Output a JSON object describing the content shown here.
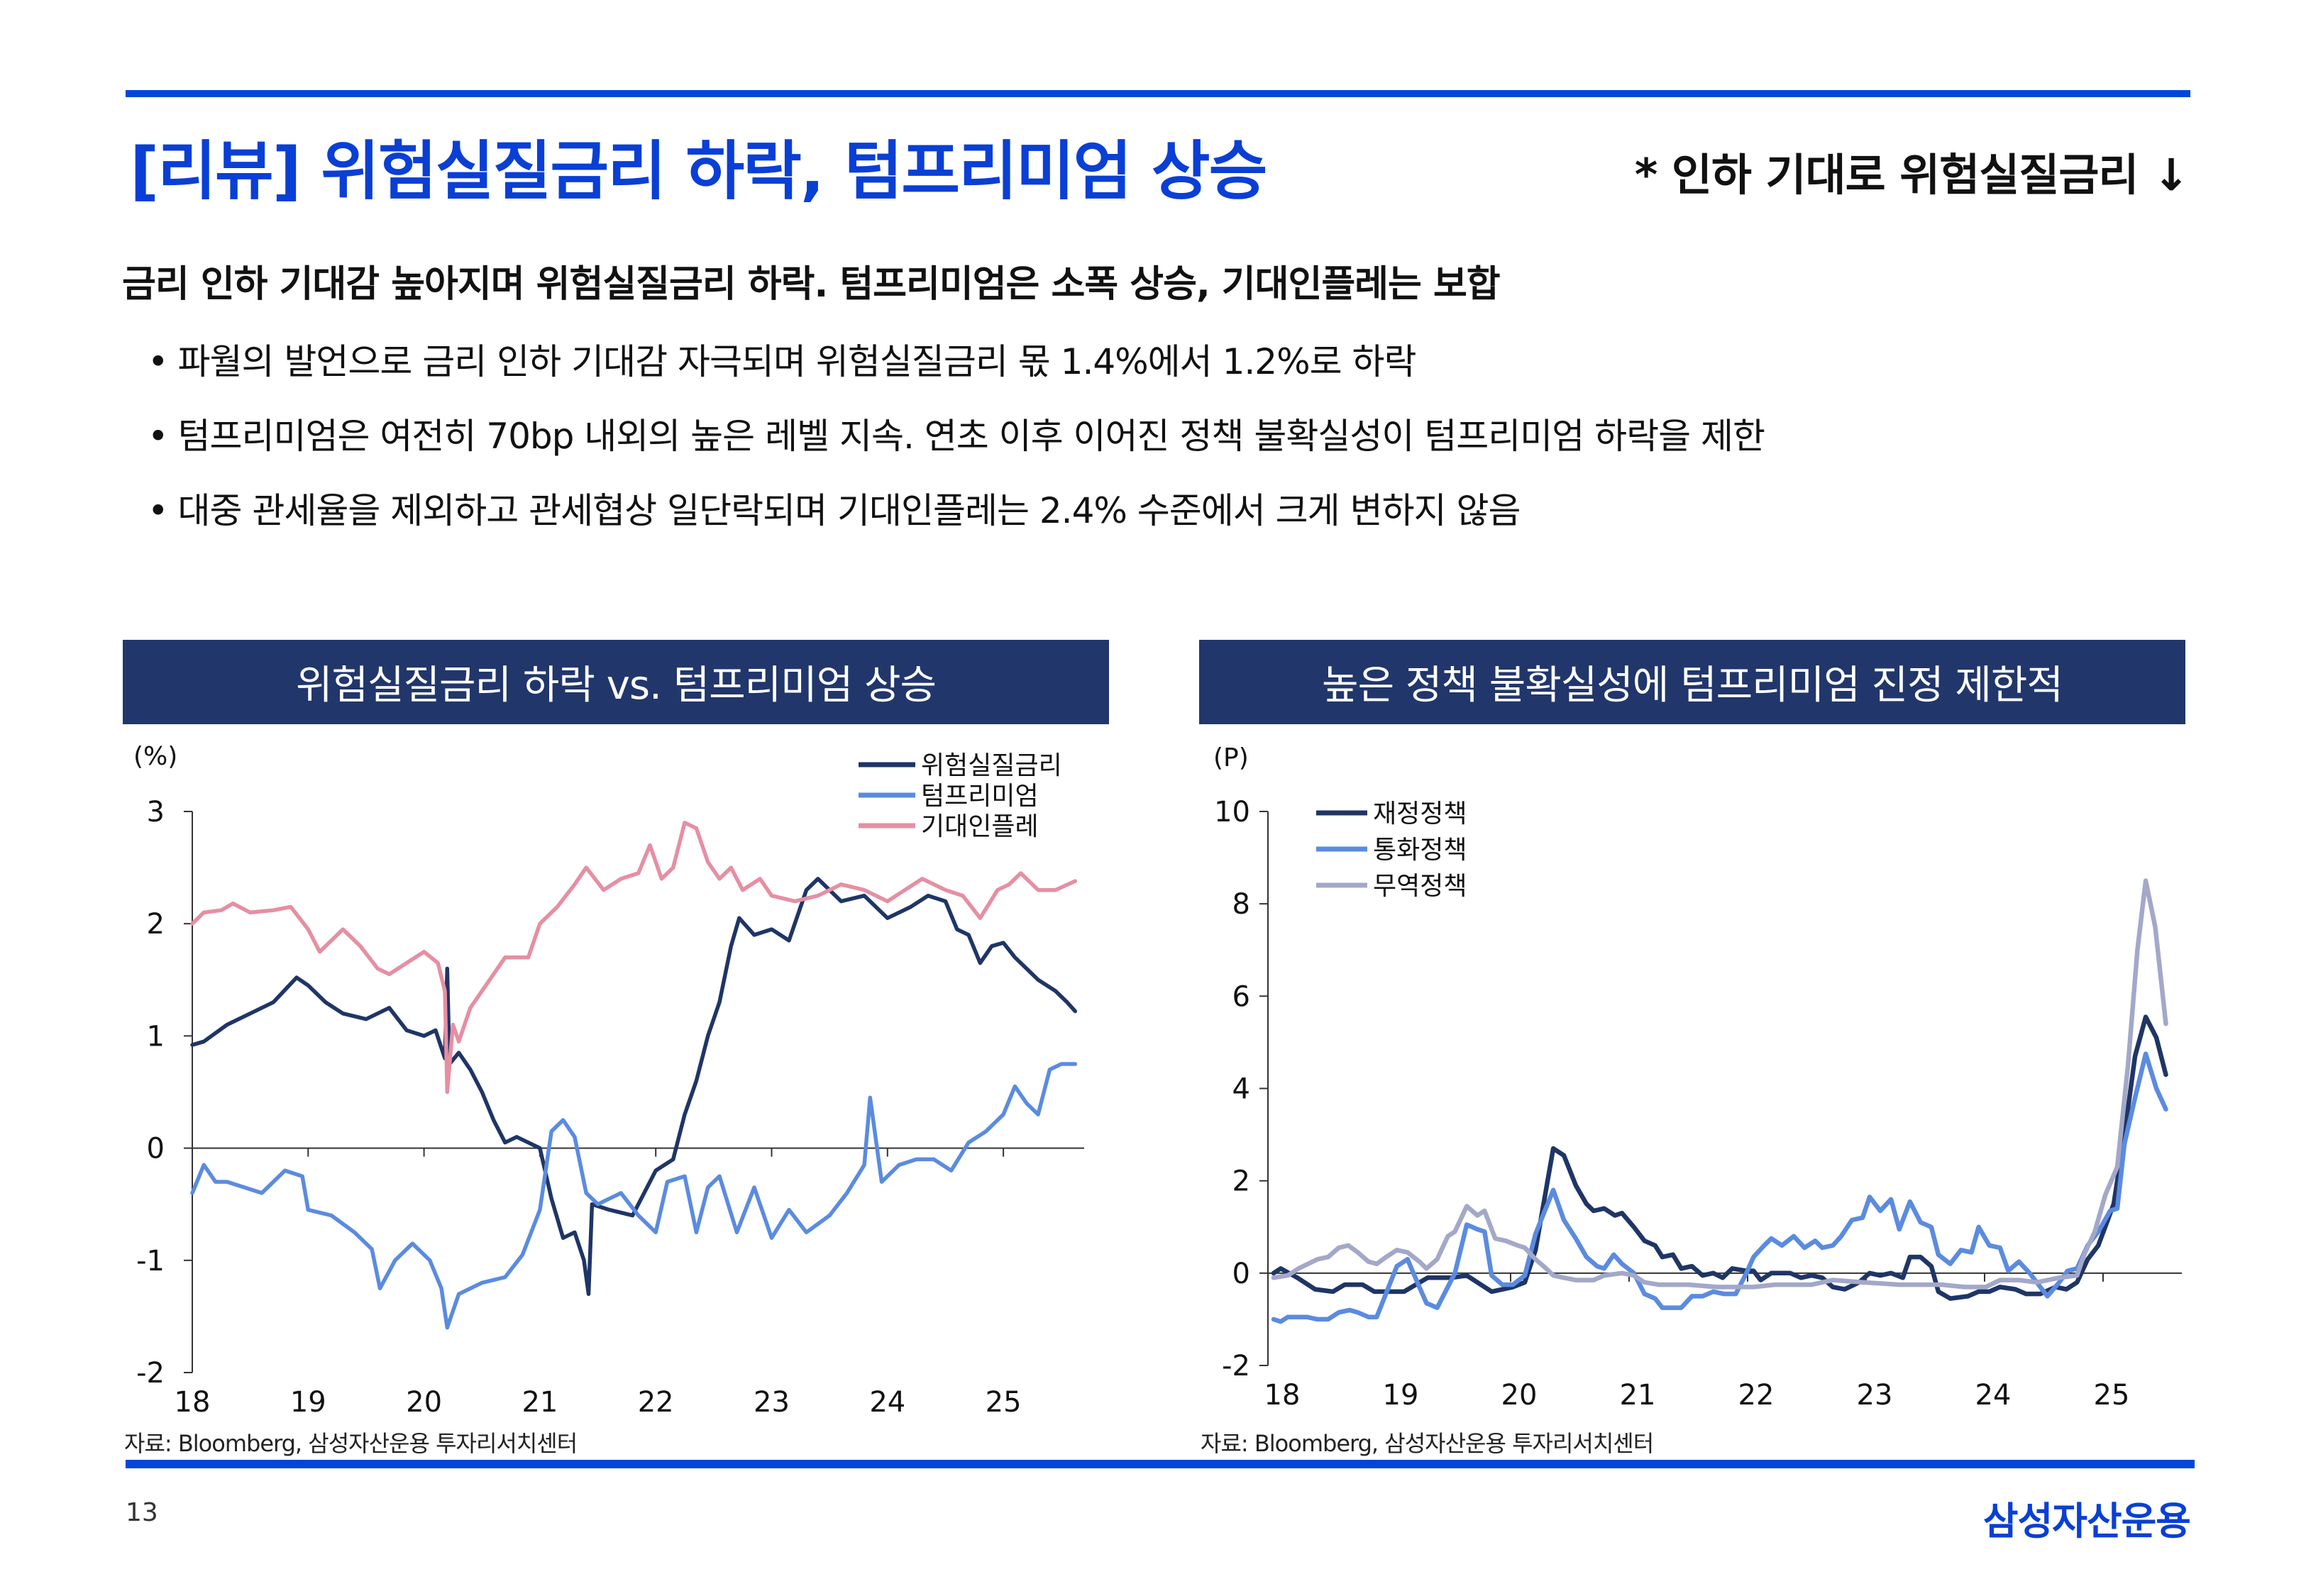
{
  "header": {
    "title": "[리뷰] 위험실질금리 하락, 텀프리미엄 상승",
    "note": "* 인하 기대로 위험실질금리 ↓"
  },
  "summary": {
    "headline": "금리 인하 기대감 높아지며 위험실질금리 하락. 텀프리미엄은 소폭 상승, 기대인플레는 보합",
    "bullet_symbol": "•",
    "bullets": [
      "파월의 발언으로 금리 인하 기대감 자극되며 위험실질금리 몫 1.4%에서 1.2%로 하락",
      "텀프리미엄은 여전히 70bp 내외의 높은 레벨 지속. 연초 이후 이어진 정책 불확실성이 텀프리미엄 하락을 제한",
      "대중 관세율을 제외하고 관세협상 일단락되며 기대인플레는 2.4% 수준에서 크게 변하지 않음"
    ]
  },
  "footer": {
    "page_number": "13",
    "logo_text": "삼성자산운용"
  },
  "colors": {
    "accent": "#0a3fd6",
    "panel_header": "#21366b",
    "navy": "#1f3566",
    "blue": "#5b8be0",
    "pink": "#e58fa3",
    "gray": "#a3a8c9"
  },
  "chart_data": [
    {
      "type": "line",
      "title": "위험실질금리 하락 vs. 텀프리미엄 상승",
      "ylabel": "(%)",
      "xlabel": "",
      "source": "자료: Bloomberg, 삼성자산운용 투자리서치센터",
      "ylim": [
        -2,
        3
      ],
      "xlim": [
        18,
        25.62
      ],
      "yticks": [
        "-2",
        "-1",
        "0",
        "1",
        "2",
        "3"
      ],
      "ytick_values": [
        -2,
        -1,
        0,
        1,
        2,
        3
      ],
      "xticks": [
        "18",
        "19",
        "20",
        "21",
        "22",
        "23",
        "24",
        "25"
      ],
      "xtick_values": [
        18,
        19,
        20,
        21,
        22,
        23,
        24,
        25
      ],
      "legend_position": "top-right",
      "series": [
        {
          "name": "위험실질금리",
          "color": "#1f3566",
          "x": [
            18.0,
            18.1,
            18.3,
            18.5,
            18.7,
            18.9,
            19.0,
            19.15,
            19.3,
            19.5,
            19.7,
            19.85,
            20.0,
            20.1,
            20.18,
            20.2,
            20.22,
            20.3,
            20.4,
            20.5,
            20.6,
            20.7,
            20.8,
            21.0,
            21.1,
            21.2,
            21.3,
            21.38,
            21.42,
            21.45,
            21.6,
            21.8,
            22.0,
            22.15,
            22.25,
            22.35,
            22.45,
            22.55,
            22.65,
            22.72,
            22.85,
            23.0,
            23.15,
            23.3,
            23.4,
            23.6,
            23.8,
            24.0,
            24.2,
            24.35,
            24.5,
            24.6,
            24.7,
            24.8,
            24.9,
            25.0,
            25.1,
            25.2,
            25.3,
            25.45,
            25.55,
            25.62
          ],
          "y": [
            0.92,
            0.95,
            1.1,
            1.2,
            1.3,
            1.52,
            1.45,
            1.3,
            1.2,
            1.15,
            1.25,
            1.05,
            1.0,
            1.05,
            0.8,
            1.6,
            0.75,
            0.85,
            0.7,
            0.5,
            0.25,
            0.05,
            0.1,
            0.0,
            -0.45,
            -0.8,
            -0.75,
            -1.0,
            -1.3,
            -0.5,
            -0.55,
            -0.6,
            -0.2,
            -0.1,
            0.3,
            0.6,
            1.0,
            1.3,
            1.8,
            2.05,
            1.9,
            1.95,
            1.85,
            2.3,
            2.4,
            2.2,
            2.25,
            2.05,
            2.15,
            2.25,
            2.2,
            1.95,
            1.9,
            1.65,
            1.8,
            1.83,
            1.7,
            1.6,
            1.5,
            1.4,
            1.3,
            1.22
          ]
        },
        {
          "name": "텀프리미엄",
          "color": "#5b8be0",
          "x": [
            18.0,
            18.1,
            18.2,
            18.3,
            18.45,
            18.6,
            18.8,
            18.95,
            19.0,
            19.2,
            19.4,
            19.55,
            19.62,
            19.75,
            19.9,
            20.05,
            20.15,
            20.2,
            20.3,
            20.5,
            20.7,
            20.85,
            21.0,
            21.1,
            21.2,
            21.3,
            21.4,
            21.5,
            21.7,
            21.85,
            22.0,
            22.1,
            22.25,
            22.35,
            22.45,
            22.55,
            22.7,
            22.85,
            23.0,
            23.15,
            23.3,
            23.5,
            23.65,
            23.8,
            23.85,
            23.95,
            24.1,
            24.25,
            24.4,
            24.55,
            24.7,
            24.85,
            25.0,
            25.1,
            25.2,
            25.3,
            25.4,
            25.5,
            25.62
          ],
          "y": [
            -0.4,
            -0.15,
            -0.3,
            -0.3,
            -0.35,
            -0.4,
            -0.2,
            -0.25,
            -0.55,
            -0.6,
            -0.75,
            -0.9,
            -1.25,
            -1.0,
            -0.85,
            -1.0,
            -1.25,
            -1.6,
            -1.3,
            -1.2,
            -1.15,
            -0.95,
            -0.55,
            0.15,
            0.25,
            0.1,
            -0.4,
            -0.5,
            -0.4,
            -0.6,
            -0.75,
            -0.3,
            -0.25,
            -0.75,
            -0.35,
            -0.25,
            -0.75,
            -0.35,
            -0.8,
            -0.55,
            -0.75,
            -0.6,
            -0.4,
            -0.15,
            0.45,
            -0.3,
            -0.15,
            -0.1,
            -0.1,
            -0.2,
            0.05,
            0.15,
            0.3,
            0.55,
            0.4,
            0.3,
            0.7,
            0.75,
            0.75
          ]
        },
        {
          "name": "기대인플레",
          "color": "#e58fa3",
          "x": [
            18.0,
            18.1,
            18.25,
            18.35,
            18.5,
            18.7,
            18.85,
            19.0,
            19.1,
            19.3,
            19.45,
            19.6,
            19.7,
            19.85,
            20.0,
            20.12,
            20.18,
            20.2,
            20.25,
            20.3,
            20.4,
            20.5,
            20.7,
            20.9,
            21.0,
            21.15,
            21.3,
            21.4,
            21.55,
            21.7,
            21.85,
            21.95,
            22.05,
            22.15,
            22.25,
            22.35,
            22.45,
            22.55,
            22.65,
            22.75,
            22.9,
            23.0,
            23.2,
            23.4,
            23.6,
            23.8,
            24.0,
            24.15,
            24.3,
            24.5,
            24.65,
            24.8,
            24.95,
            25.05,
            25.15,
            25.3,
            25.45,
            25.62
          ],
          "y": [
            2.0,
            2.1,
            2.12,
            2.18,
            2.1,
            2.12,
            2.15,
            1.95,
            1.75,
            1.95,
            1.8,
            1.6,
            1.55,
            1.65,
            1.75,
            1.65,
            1.4,
            0.5,
            1.1,
            0.95,
            1.25,
            1.4,
            1.7,
            1.7,
            2.0,
            2.15,
            2.35,
            2.5,
            2.3,
            2.4,
            2.45,
            2.7,
            2.4,
            2.5,
            2.9,
            2.85,
            2.55,
            2.4,
            2.5,
            2.3,
            2.4,
            2.25,
            2.2,
            2.25,
            2.35,
            2.3,
            2.2,
            2.3,
            2.4,
            2.3,
            2.25,
            2.05,
            2.3,
            2.35,
            2.45,
            2.3,
            2.3,
            2.38
          ]
        }
      ]
    },
    {
      "type": "line",
      "title": "높은 정책 불확실성에 텀프리미엄 진정 제한적",
      "ylabel": "(P)",
      "xlabel": "",
      "source": "자료: Bloomberg, 삼성자산운용 투자리서치센터",
      "ylim": [
        -2,
        10
      ],
      "xlim": [
        18,
        25.53
      ],
      "yticks": [
        "-2",
        "0",
        "2",
        "4",
        "6",
        "8",
        "10"
      ],
      "ytick_values": [
        -2,
        0,
        2,
        4,
        6,
        8,
        10
      ],
      "xticks": [
        "18",
        "19",
        "20",
        "21",
        "22",
        "23",
        "24",
        "25"
      ],
      "xtick_values": [
        18,
        19,
        20,
        21,
        22,
        23,
        24,
        25
      ],
      "legend_position": "top-left",
      "series": [
        {
          "name": "재정정책",
          "color": "#1f3566",
          "x": [
            18.0,
            18.06,
            18.2,
            18.35,
            18.5,
            18.6,
            18.75,
            18.85,
            19.0,
            19.1,
            19.3,
            19.5,
            19.63,
            19.84,
            20.02,
            20.12,
            20.21,
            20.36,
            20.45,
            20.55,
            20.64,
            20.7,
            20.79,
            20.88,
            20.94,
            21.04,
            21.13,
            21.22,
            21.28,
            21.37,
            21.44,
            21.53,
            21.62,
            21.71,
            21.79,
            21.87,
            21.99,
            22.05,
            22.11,
            22.2,
            22.36,
            22.45,
            22.54,
            22.63,
            22.72,
            22.82,
            22.94,
            23.03,
            23.12,
            23.21,
            23.31,
            23.37,
            23.46,
            23.55,
            23.61,
            23.71,
            23.86,
            23.95,
            24.04,
            24.13,
            24.26,
            24.35,
            24.47,
            24.6,
            24.69,
            24.78,
            24.87,
            24.96,
            25.09,
            25.18,
            25.27,
            25.36,
            25.45,
            25.53
          ],
          "y": [
            0.0,
            0.1,
            -0.1,
            -0.35,
            -0.4,
            -0.25,
            -0.25,
            -0.4,
            -0.4,
            -0.4,
            -0.1,
            -0.1,
            -0.05,
            -0.4,
            -0.3,
            -0.2,
            0.5,
            2.7,
            2.55,
            1.9,
            1.5,
            1.35,
            1.4,
            1.25,
            1.3,
            1.0,
            0.7,
            0.6,
            0.35,
            0.4,
            0.1,
            0.15,
            -0.05,
            0.0,
            -0.1,
            0.1,
            0.05,
            0.05,
            -0.15,
            0.0,
            0.0,
            -0.1,
            -0.05,
            -0.1,
            -0.3,
            -0.35,
            -0.2,
            0.0,
            -0.05,
            0.0,
            -0.1,
            0.35,
            0.35,
            0.15,
            -0.4,
            -0.55,
            -0.5,
            -0.4,
            -0.4,
            -0.3,
            -0.35,
            -0.45,
            -0.45,
            -0.3,
            -0.35,
            -0.2,
            0.3,
            0.6,
            1.5,
            3.0,
            4.7,
            5.55,
            5.1,
            4.3
          ]
        },
        {
          "name": "통화정책",
          "color": "#5b8be0",
          "x": [
            18.0,
            18.06,
            18.12,
            18.28,
            18.37,
            18.46,
            18.55,
            18.64,
            18.71,
            18.8,
            18.87,
            19.04,
            19.13,
            19.23,
            19.29,
            19.38,
            19.47,
            19.53,
            19.63,
            19.72,
            19.78,
            19.84,
            19.93,
            20.02,
            20.12,
            20.21,
            20.36,
            20.45,
            20.55,
            20.64,
            20.73,
            20.79,
            20.87,
            20.94,
            21.04,
            21.13,
            21.22,
            21.28,
            21.44,
            21.53,
            21.62,
            21.71,
            21.8,
            21.9,
            21.99,
            22.05,
            22.14,
            22.2,
            22.29,
            22.39,
            22.48,
            22.57,
            22.63,
            22.72,
            22.79,
            22.88,
            22.97,
            23.03,
            23.12,
            23.21,
            23.28,
            23.37,
            23.46,
            23.55,
            23.61,
            23.71,
            23.8,
            23.89,
            23.95,
            24.04,
            24.13,
            24.2,
            24.29,
            24.38,
            24.44,
            24.53,
            24.63,
            24.7,
            24.78,
            24.87,
            24.96,
            25.06,
            25.12,
            25.18,
            25.27,
            25.36,
            25.45,
            25.53
          ],
          "y": [
            -1.0,
            -1.05,
            -0.95,
            -0.95,
            -1.0,
            -1.0,
            -0.85,
            -0.8,
            -0.85,
            -0.95,
            -0.95,
            0.15,
            0.3,
            -0.3,
            -0.65,
            -0.75,
            -0.3,
            0.0,
            1.05,
            0.95,
            0.9,
            -0.05,
            -0.25,
            -0.25,
            -0.05,
            0.85,
            1.8,
            1.15,
            0.75,
            0.35,
            0.15,
            0.1,
            0.4,
            0.2,
            0.0,
            -0.45,
            -0.55,
            -0.75,
            -0.75,
            -0.5,
            -0.5,
            -0.4,
            -0.45,
            -0.45,
            0.0,
            0.35,
            0.6,
            0.75,
            0.6,
            0.8,
            0.55,
            0.7,
            0.55,
            0.6,
            0.8,
            1.15,
            1.2,
            1.65,
            1.35,
            1.6,
            0.95,
            1.55,
            1.1,
            1.0,
            0.4,
            0.2,
            0.5,
            0.45,
            1.0,
            0.6,
            0.55,
            0.05,
            0.25,
            0.0,
            -0.2,
            -0.5,
            -0.2,
            0.05,
            0.1,
            0.6,
            0.9,
            1.35,
            1.4,
            2.8,
            3.8,
            4.75,
            4.0,
            3.55
          ]
        },
        {
          "name": "무역정책",
          "color": "#a3a8c9",
          "x": [
            18.0,
            18.12,
            18.21,
            18.37,
            18.46,
            18.55,
            18.63,
            18.71,
            18.8,
            18.87,
            18.95,
            19.04,
            19.13,
            19.23,
            19.29,
            19.38,
            19.47,
            19.53,
            19.63,
            19.72,
            19.78,
            19.87,
            19.96,
            20.06,
            20.12,
            20.21,
            20.3,
            20.36,
            20.45,
            20.55,
            20.7,
            20.79,
            20.94,
            21.04,
            21.13,
            21.25,
            21.5,
            21.74,
            22.05,
            22.23,
            22.54,
            22.72,
            22.97,
            23.28,
            23.64,
            23.83,
            24.01,
            24.13,
            24.29,
            24.44,
            24.63,
            24.78,
            24.84,
            24.93,
            25.02,
            25.12,
            25.21,
            25.29,
            25.36,
            25.44,
            25.53
          ],
          "y": [
            -0.1,
            -0.05,
            0.1,
            0.3,
            0.35,
            0.55,
            0.6,
            0.45,
            0.25,
            0.2,
            0.35,
            0.5,
            0.45,
            0.25,
            0.1,
            0.3,
            0.8,
            0.9,
            1.45,
            1.25,
            1.35,
            0.75,
            0.7,
            0.6,
            0.55,
            0.3,
            0.1,
            -0.05,
            -0.1,
            -0.15,
            -0.15,
            -0.05,
            0.0,
            -0.05,
            -0.2,
            -0.25,
            -0.25,
            -0.3,
            -0.3,
            -0.25,
            -0.25,
            -0.15,
            -0.2,
            -0.25,
            -0.25,
            -0.3,
            -0.3,
            -0.15,
            -0.15,
            -0.2,
            -0.1,
            -0.05,
            0.4,
            0.9,
            1.7,
            2.3,
            4.5,
            7.0,
            8.5,
            7.5,
            5.4
          ]
        }
      ]
    }
  ]
}
